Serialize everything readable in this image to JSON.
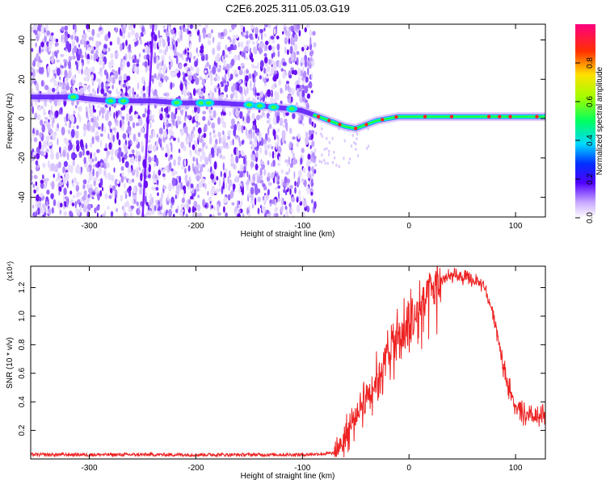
{
  "title": "C2E6.2025.311.05.03.G19",
  "chart_data": [
    {
      "type": "heatmap",
      "xlabel": "Height of straight line (km)",
      "ylabel": "Frequency (Hz)",
      "xlim": [
        -355,
        128
      ],
      "ylim": [
        -50,
        48
      ],
      "xticks": [
        -300,
        -200,
        -100,
        0,
        100
      ],
      "yticks": [
        -40,
        -20,
        0,
        20,
        40
      ],
      "colorbar": {
        "label": "Normalized spectral amplitude",
        "range": [
          0,
          1
        ],
        "ticks": [
          0.0,
          0.2,
          0.4,
          0.6,
          0.8
        ],
        "colors": [
          "#ffffff",
          "#a070ff",
          "#0000ff",
          "#00ffff",
          "#00ff00",
          "#ffff00",
          "#ff0000",
          "#ff00a0"
        ]
      },
      "ridge": {
        "x": [
          -315,
          -300,
          -280,
          -265,
          -240,
          -215,
          -195,
          -180,
          -150,
          -130,
          -110,
          -100,
          -90,
          -80,
          -70,
          -60,
          -50,
          -40,
          -30,
          -20,
          -10,
          0,
          20,
          40,
          60,
          80,
          100,
          128
        ],
        "y": [
          11,
          10,
          9,
          9,
          9,
          8,
          8,
          8,
          7,
          6,
          5,
          4,
          2,
          0,
          -2,
          -4,
          -5,
          -3,
          -1,
          0,
          1,
          1,
          1,
          1,
          1,
          1,
          1,
          1
        ]
      }
    },
    {
      "type": "line",
      "xlabel": "Height of straight line (km)",
      "ylabel": "SNR (10 * v/v)",
      "yscale_label": "(x10⁴)",
      "xlim": [
        -355,
        128
      ],
      "ylim": [
        0,
        1.35
      ],
      "xticks": [
        -300,
        -200,
        -100,
        0,
        100
      ],
      "yticks": [
        0.2,
        0.4,
        0.6,
        0.8,
        1.0,
        1.2
      ],
      "series": [
        {
          "color": "#ee2222",
          "x": [
            -355,
            -300,
            -200,
            -100,
            -70,
            -60,
            -50,
            -40,
            -30,
            -20,
            -10,
            0,
            10,
            20,
            30,
            40,
            50,
            60,
            70,
            80,
            90,
            100,
            110,
            120,
            128
          ],
          "y": [
            0.03,
            0.03,
            0.03,
            0.03,
            0.04,
            0.15,
            0.3,
            0.45,
            0.55,
            0.75,
            0.85,
            0.9,
            1.05,
            1.15,
            1.25,
            1.28,
            1.27,
            1.25,
            1.22,
            1.0,
            0.6,
            0.35,
            0.3,
            0.28,
            0.3
          ]
        }
      ]
    }
  ]
}
